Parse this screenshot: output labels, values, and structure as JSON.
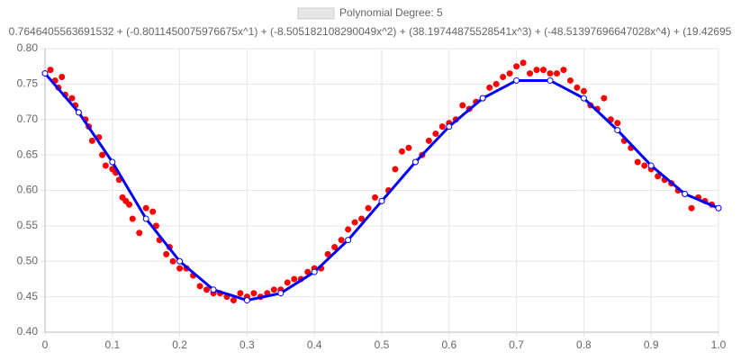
{
  "chart_data": {
    "type": "scatter",
    "title": "0.7646405563691532 + (-0.8011450075976675x^1) + (-8.505182108290049x^2) + (38.19744875528541x^3) + (-48.51397696647028x^4) + (19.42695",
    "xlim": [
      0,
      1
    ],
    "xticks": [
      0,
      0.1,
      0.2,
      0.3,
      0.4,
      0.5,
      0.6,
      0.7,
      0.8,
      0.9,
      {
        "value": 1,
        "label": "1.0"
      }
    ],
    "ylim": [
      0.4,
      0.8
    ],
    "yticks": [
      {
        "value": 0.4,
        "label": "0.40"
      },
      0.45,
      {
        "value": 0.5,
        "label": "0.50"
      },
      0.55,
      {
        "value": 0.6,
        "label": "0.60"
      },
      0.65,
      {
        "value": 0.7,
        "label": "0.70"
      },
      0.75,
      {
        "value": 0.8,
        "label": "0.80"
      }
    ],
    "grid": true,
    "series": [
      {
        "name": "Polynomial Degree: 5",
        "color": "#0000ff",
        "line": true,
        "x": [
          0,
          0.05,
          0.1,
          0.15,
          0.2,
          0.25,
          0.3,
          0.35,
          0.4,
          0.45,
          0.5,
          0.55,
          0.6,
          0.65,
          0.7,
          0.75,
          0.8,
          0.85,
          0.9,
          0.95,
          1
        ],
        "values": [
          0.765,
          0.71,
          0.64,
          0.56,
          0.5,
          0.46,
          0.445,
          0.455,
          0.485,
          0.53,
          0.585,
          0.64,
          0.69,
          0.73,
          0.755,
          0.755,
          0.73,
          0.685,
          0.635,
          0.595,
          0.575
        ]
      },
      {
        "color": "#ff0000",
        "line": false,
        "x": [
          0,
          0.008,
          0.015,
          0.02,
          0.025,
          0.03,
          0.04,
          0.045,
          0.05,
          0.06,
          0.065,
          0.07,
          0.08,
          0.085,
          0.09,
          0.1,
          0.105,
          0.11,
          0.115,
          0.12,
          0.125,
          0.13,
          0.14,
          0.15,
          0.16,
          0.165,
          0.17,
          0.18,
          0.185,
          0.19,
          0.2,
          0.21,
          0.22,
          0.23,
          0.24,
          0.25,
          0.26,
          0.27,
          0.28,
          0.29,
          0.3,
          0.31,
          0.32,
          0.33,
          0.34,
          0.35,
          0.36,
          0.37,
          0.38,
          0.39,
          0.4,
          0.41,
          0.42,
          0.43,
          0.44,
          0.45,
          0.46,
          0.47,
          0.48,
          0.49,
          0.5,
          0.51,
          0.52,
          0.53,
          0.54,
          0.55,
          0.56,
          0.57,
          0.58,
          0.59,
          0.6,
          0.61,
          0.62,
          0.63,
          0.64,
          0.65,
          0.66,
          0.67,
          0.68,
          0.69,
          0.7,
          0.71,
          0.72,
          0.73,
          0.74,
          0.75,
          0.76,
          0.77,
          0.78,
          0.79,
          0.8,
          0.81,
          0.82,
          0.83,
          0.84,
          0.85,
          0.86,
          0.87,
          0.88,
          0.89,
          0.9,
          0.91,
          0.92,
          0.93,
          0.94,
          0.95,
          0.96,
          0.97,
          0.98,
          0.99,
          1
        ],
        "values": [
          0.765,
          0.77,
          0.755,
          0.745,
          0.76,
          0.735,
          0.73,
          0.72,
          0.71,
          0.7,
          0.69,
          0.67,
          0.675,
          0.65,
          0.635,
          0.63,
          0.625,
          0.615,
          0.59,
          0.585,
          0.58,
          0.56,
          0.54,
          0.575,
          0.57,
          0.55,
          0.53,
          0.51,
          0.52,
          0.5,
          0.49,
          0.49,
          0.48,
          0.465,
          0.46,
          0.455,
          0.455,
          0.45,
          0.445,
          0.455,
          0.45,
          0.455,
          0.45,
          0.455,
          0.46,
          0.46,
          0.47,
          0.475,
          0.475,
          0.485,
          0.49,
          0.49,
          0.51,
          0.52,
          0.53,
          0.545,
          0.555,
          0.56,
          0.575,
          0.59,
          0.585,
          0.6,
          0.63,
          0.655,
          0.66,
          0.64,
          0.65,
          0.67,
          0.68,
          0.69,
          0.695,
          0.7,
          0.72,
          0.715,
          0.725,
          0.73,
          0.745,
          0.75,
          0.76,
          0.765,
          0.775,
          0.78,
          0.765,
          0.77,
          0.77,
          0.765,
          0.765,
          0.77,
          0.755,
          0.745,
          0.74,
          0.72,
          0.715,
          0.73,
          0.7,
          0.695,
          0.67,
          0.66,
          0.64,
          0.635,
          0.63,
          0.62,
          0.615,
          0.61,
          0.6,
          0.595,
          0.575,
          0.59,
          0.585,
          0.58,
          0.575
        ]
      }
    ]
  }
}
